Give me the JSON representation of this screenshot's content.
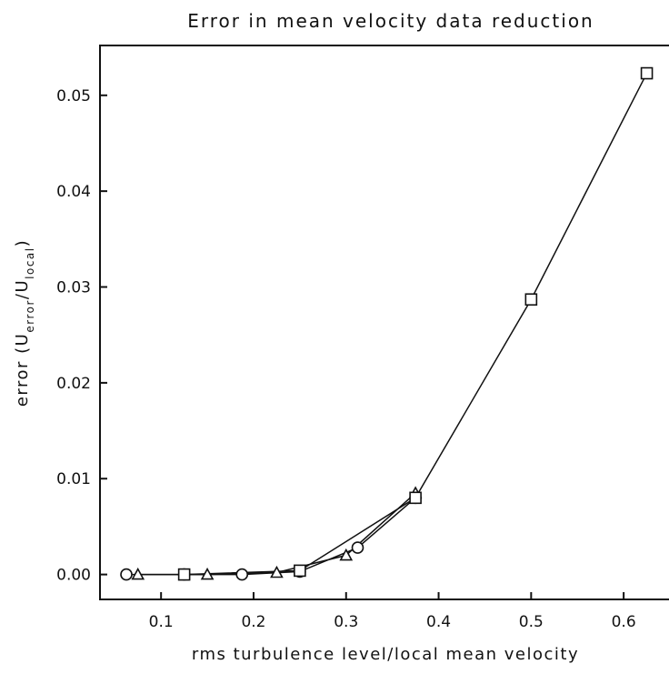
{
  "chart_data": {
    "type": "line",
    "title": "Error in mean velocity data reduction",
    "xlabel": "rms turbulence level/local mean velocity",
    "ylabel": {
      "main": "error (U",
      "sub1": "error",
      "mid": "/U",
      "sub2": "local",
      "end": ")"
    },
    "xlim": [
      0.034,
      0.649
    ],
    "ylim": [
      -0.0026,
      0.0552
    ],
    "xticks": [
      0.1,
      0.2,
      0.3,
      0.4,
      0.5,
      0.6
    ],
    "yticks": [
      {
        "value": 0,
        "label": "0.00"
      },
      0.01,
      0.02,
      0.03,
      0.04,
      0.05
    ],
    "series": [
      {
        "marker": "circle",
        "color": "#111111",
        "x": [
          0.0625,
          0.125,
          0.1875,
          0.25,
          0.3125,
          0.375
        ],
        "values": [
          0,
          0,
          0,
          0.0003,
          0.0028,
          0.008
        ]
      },
      {
        "marker": "triangle",
        "color": "#111111",
        "x": [
          0.075,
          0.15,
          0.225,
          0.3,
          0.375
        ],
        "values": [
          0,
          0,
          0.0002,
          0.002,
          0.0085
        ]
      },
      {
        "marker": "square",
        "color": "#111111",
        "x": [
          0.125,
          0.25,
          0.375,
          0.5,
          0.625
        ],
        "values": [
          0,
          0.0004,
          0.008,
          0.0287,
          0.0523
        ]
      }
    ]
  }
}
